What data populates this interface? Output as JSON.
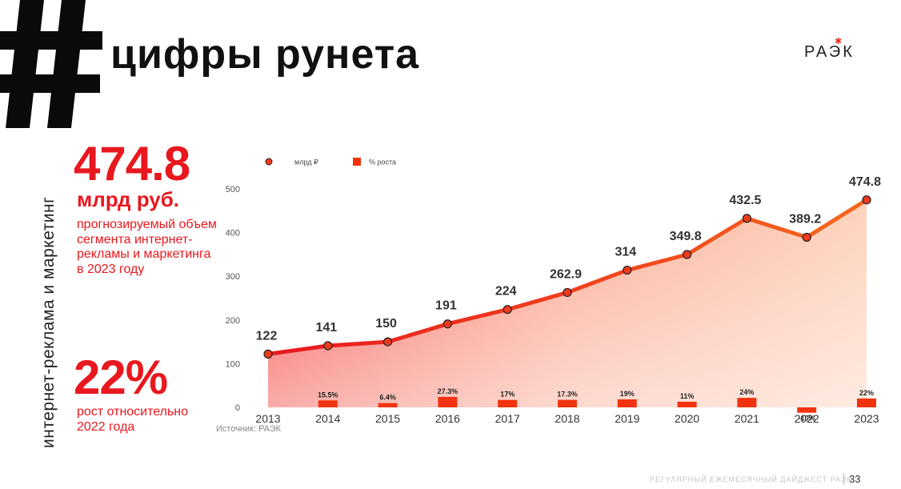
{
  "header": {
    "title": "цифры рунета",
    "logo": "РАЭК"
  },
  "sidebar": {
    "vertical_label": "интернет-реклама и маркетинг"
  },
  "stats": {
    "main_value": "474.8",
    "main_unit": "млрд руб.",
    "main_desc": "прогнозируемый объем сегмента интернет-рекламы и маркетинга в 2023 году",
    "growth_value": "22%",
    "growth_desc": "рост относительно 2022 года"
  },
  "chart_data": {
    "type": "line",
    "legend": [
      "млрд ₽",
      "% роста"
    ],
    "legend_position": "top-left",
    "categories": [
      "2013",
      "2014",
      "2015",
      "2016",
      "2017",
      "2018",
      "2019",
      "2020",
      "2021",
      "2022",
      "2023"
    ],
    "series": [
      {
        "name": "млрд ₽",
        "type": "area-line",
        "values": [
          122,
          141,
          150,
          191,
          224,
          262.9,
          314,
          349.8,
          432.5,
          389.2,
          474.8
        ],
        "labels": [
          "122",
          "141",
          "150",
          "191",
          "224",
          "262.9",
          "314",
          "349.8",
          "432.5",
          "389.2",
          "474.8"
        ]
      },
      {
        "name": "% роста",
        "type": "bar",
        "values": [
          null,
          15.5,
          6.4,
          27.3,
          17,
          17.3,
          19,
          11,
          24,
          -10,
          22
        ],
        "labels": [
          "",
          "15.5%",
          "6.4%",
          "27.3%",
          "17%",
          "17.3%",
          "19%",
          "11%",
          "24%",
          "-10%",
          "22%"
        ]
      }
    ],
    "y_ticks": [
      "0",
      "100",
      "200",
      "300",
      "400",
      "500"
    ],
    "ylim": [
      0,
      500
    ],
    "grid": false
  },
  "source": "Источник: РАЭК",
  "footer": {
    "text": "РЕГУЛЯРНЫЙ ЕЖЕМЕСЯЧНЫЙ ДАЙДЖЕСТ РАЭК",
    "page_number": "33"
  },
  "colors": {
    "accent": "#e8181e",
    "line": "#f03a12",
    "bar": "#f2330f"
  }
}
